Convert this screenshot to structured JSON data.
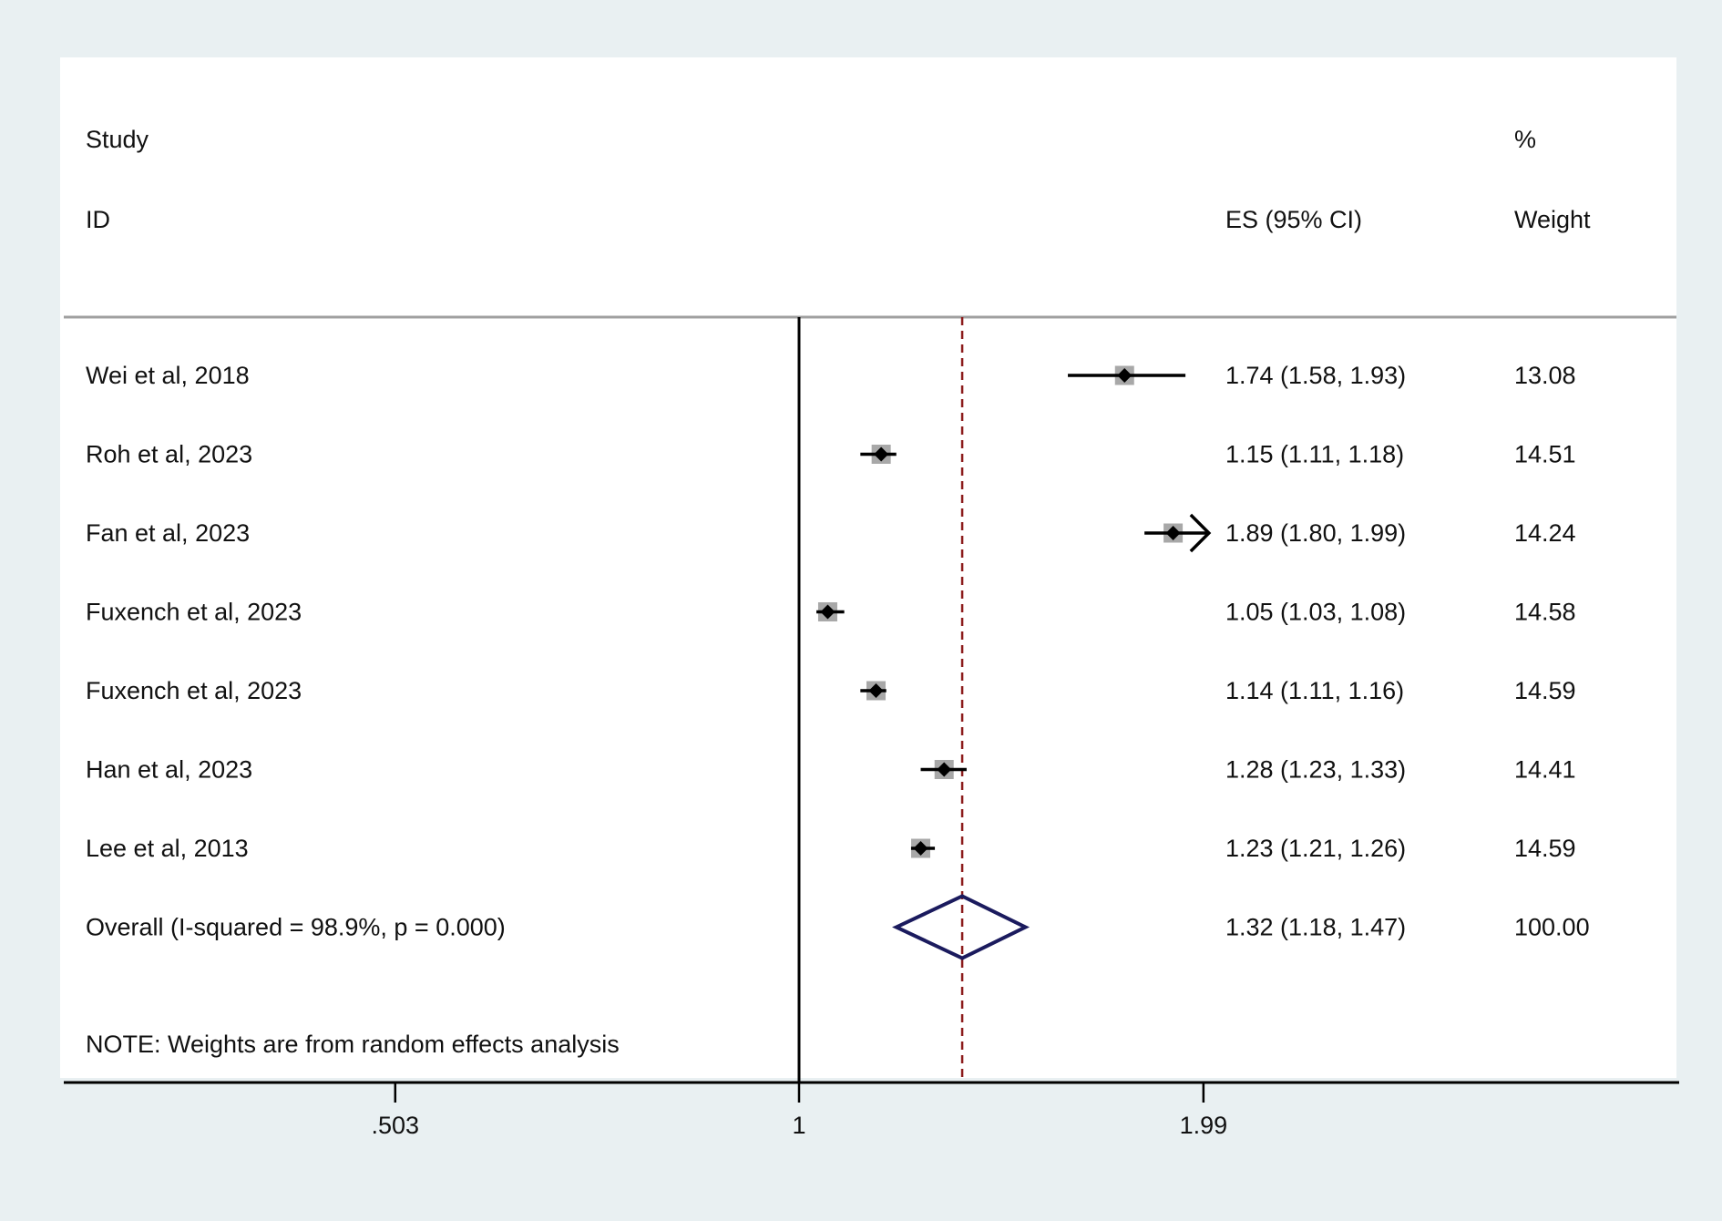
{
  "chart_data": {
    "type": "forest",
    "scale": "log",
    "header": {
      "col1_line1": "Study",
      "col1_line2": "ID",
      "col2_line2": "ES (95% CI)",
      "col3_line1": "%",
      "col3_line2": "Weight"
    },
    "studies": [
      {
        "id": "Wei et al, 2018",
        "es": 1.74,
        "lo": 1.58,
        "hi": 1.93,
        "label": "1.74 (1.58, 1.93)",
        "weight": "13.08"
      },
      {
        "id": "Roh et al, 2023",
        "es": 1.15,
        "lo": 1.11,
        "hi": 1.18,
        "label": "1.15 (1.11, 1.18)",
        "weight": "14.51"
      },
      {
        "id": "Fan et al, 2023",
        "es": 1.89,
        "lo": 1.8,
        "hi": 1.99,
        "label": "1.89 (1.80, 1.99)",
        "weight": "14.24",
        "arrow_right": true
      },
      {
        "id": "Fuxench et al, 2023",
        "es": 1.05,
        "lo": 1.03,
        "hi": 1.08,
        "label": "1.05 (1.03, 1.08)",
        "weight": "14.58"
      },
      {
        "id": "Fuxench et al, 2023",
        "es": 1.14,
        "lo": 1.11,
        "hi": 1.16,
        "label": "1.14 (1.11, 1.16)",
        "weight": "14.59"
      },
      {
        "id": "Han et al, 2023",
        "es": 1.28,
        "lo": 1.23,
        "hi": 1.33,
        "label": "1.28 (1.23, 1.33)",
        "weight": "14.41"
      },
      {
        "id": "Lee et al, 2013",
        "es": 1.23,
        "lo": 1.21,
        "hi": 1.26,
        "label": "1.23 (1.21, 1.26)",
        "weight": "14.59"
      }
    ],
    "overall": {
      "id": "Overall  (I-squared = 98.9%, p = 0.000)",
      "es": 1.32,
      "lo": 1.18,
      "hi": 1.47,
      "label": "1.32 (1.18, 1.47)",
      "weight": "100.00"
    },
    "note": "NOTE: Weights are from random effects analysis",
    "x_ticks": [
      {
        "value": 0.503,
        "label": ".503"
      },
      {
        "value": 1,
        "label": "1"
      },
      {
        "value": 1.99,
        "label": "1.99"
      }
    ],
    "null_line": 1,
    "colors": {
      "text": "#111111",
      "ci_line": "#000000",
      "point": "#000000",
      "weight_box": "#a8a8a8",
      "overall_diamond": "#1b1b5e",
      "overall_line": "#8b1a1a",
      "plot_bg": "#ffffff",
      "page_bg": "#e9f0f2",
      "separator": "#a0a0a0"
    }
  }
}
